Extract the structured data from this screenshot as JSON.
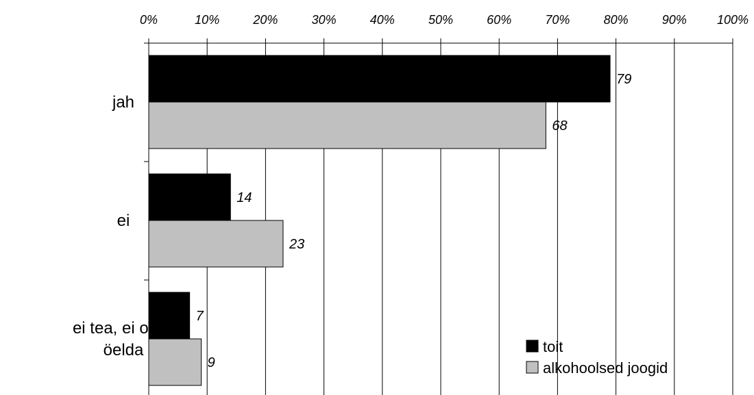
{
  "chart_data": {
    "type": "bar",
    "orientation": "horizontal",
    "categories": [
      "jah",
      "ei",
      "ei tea, ei oska öelda"
    ],
    "category_lines": [
      [
        "jah"
      ],
      [
        "ei"
      ],
      [
        "ei tea, ei oska",
        "öelda"
      ]
    ],
    "series": [
      {
        "name": "toit",
        "values": [
          79,
          14,
          7
        ],
        "color": "#000000"
      },
      {
        "name": "alkohoolsed joogid",
        "values": [
          68,
          23,
          9
        ],
        "color": "#c0c0c0"
      }
    ],
    "x_ticks": [
      "0%",
      "10%",
      "20%",
      "30%",
      "40%",
      "50%",
      "60%",
      "70%",
      "80%",
      "90%",
      "100%"
    ],
    "xlim": [
      0,
      100
    ],
    "x_axis_position": "top",
    "grid": true,
    "legend_position": "bottom-right",
    "data_labels": true,
    "title": "",
    "xlabel": "",
    "ylabel": ""
  }
}
